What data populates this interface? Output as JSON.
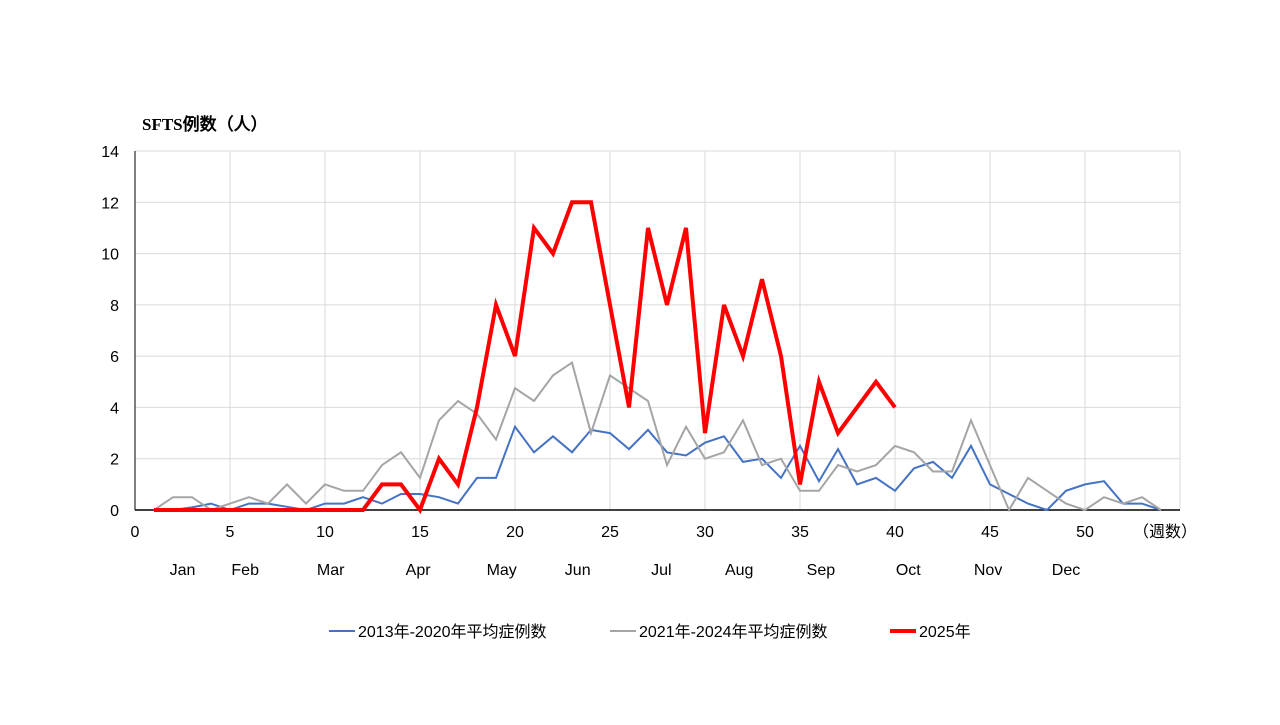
{
  "chart_data": {
    "type": "line",
    "ylabel": "SFTS例数（人）",
    "xlabel": "（週数）",
    "xlim": [
      0,
      55
    ],
    "ylim": [
      0,
      14
    ],
    "xticks": [
      0,
      5,
      10,
      15,
      20,
      25,
      30,
      35,
      40,
      45,
      50
    ],
    "yticks": [
      0,
      2,
      4,
      6,
      8,
      10,
      12,
      14
    ],
    "grid": true,
    "legend_position": "bottom",
    "month_labels": [
      {
        "label": "Jan",
        "week": 2.5
      },
      {
        "label": "Feb",
        "week": 5.8
      },
      {
        "label": "Mar",
        "week": 10.3
      },
      {
        "label": "Apr",
        "week": 14.9
      },
      {
        "label": "May",
        "week": 19.3
      },
      {
        "label": "Jun",
        "week": 23.3
      },
      {
        "label": "Jul",
        "week": 27.7
      },
      {
        "label": "Aug",
        "week": 31.8
      },
      {
        "label": "Sep",
        "week": 36.1
      },
      {
        "label": "Oct",
        "week": 40.7
      },
      {
        "label": "Nov",
        "week": 44.9
      },
      {
        "label": "Dec",
        "week": 49
      }
    ],
    "series": [
      {
        "name": "2013年-2020年平均症例数",
        "color": "#4472C4",
        "width": 2,
        "start_week": 1,
        "values": [
          0,
          0,
          0.1,
          0.25,
          0,
          0.25,
          0.25,
          0.125,
          0,
          0.25,
          0.25,
          0.5,
          0.25,
          0.625,
          0.625,
          0.5,
          0.25,
          1.25,
          1.25,
          3.25,
          2.25,
          2.875,
          2.25,
          3.125,
          3,
          2.375,
          3.125,
          2.25,
          2.125,
          2.625,
          2.875,
          1.875,
          2,
          1.25,
          2.5,
          1.125,
          2.375,
          1,
          1.25,
          0.75,
          1.625,
          1.875,
          1.25,
          2.5,
          1,
          0.625,
          0.25,
          0,
          0.75,
          1,
          1.125,
          0.25,
          0.25,
          0
        ]
      },
      {
        "name": "2021年-2024年平均症例数",
        "color": "#A5A5A5",
        "width": 2,
        "start_week": 1,
        "values": [
          0,
          0.5,
          0.5,
          0,
          0.25,
          0.5,
          0.25,
          1,
          0.25,
          1,
          0.75,
          0.75,
          1.75,
          2.25,
          1.25,
          3.5,
          4.25,
          3.75,
          2.75,
          4.75,
          4.25,
          5.25,
          5.75,
          3,
          5.25,
          4.75,
          4.25,
          1.75,
          3.25,
          2,
          2.25,
          3.5,
          1.75,
          2,
          0.75,
          0.75,
          1.75,
          1.5,
          1.75,
          2.5,
          2.25,
          1.5,
          1.5,
          3.5,
          1.75,
          0,
          1.25,
          0.75,
          0.25,
          0,
          0.5,
          0.25,
          0.5,
          0
        ]
      },
      {
        "name": "2025年",
        "color": "#FF0000",
        "width": 4,
        "start_week": 1,
        "values": [
          0,
          0,
          0,
          0,
          0,
          0,
          0,
          0,
          0,
          0,
          0,
          0,
          1,
          1,
          0,
          2,
          1,
          4,
          8,
          6,
          11,
          10,
          12,
          12,
          8,
          4,
          11,
          8,
          11,
          3,
          8,
          6,
          9,
          6,
          1,
          5,
          3,
          4,
          5,
          4
        ]
      }
    ]
  }
}
